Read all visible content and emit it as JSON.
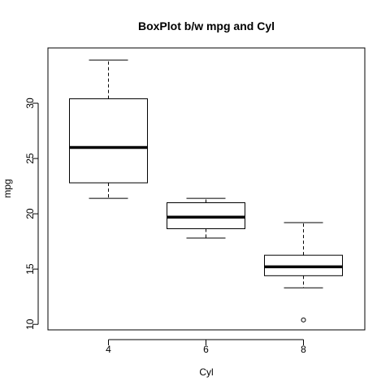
{
  "chart_data": {
    "type": "boxplot",
    "title": "BoxPlot b/w mpg and Cyl",
    "xlabel": "Cyl",
    "ylabel": "mpg",
    "categories": [
      "4",
      "6",
      "8"
    ],
    "x_ticks": [
      "4",
      "6",
      "8"
    ],
    "y_ticks": [
      10,
      15,
      20,
      25,
      30
    ],
    "ylim": [
      9.5,
      35.0
    ],
    "grid": false,
    "boxes": [
      {
        "category": "4",
        "whisker_low": 21.4,
        "q1": 22.8,
        "median": 26.0,
        "q3": 30.4,
        "whisker_high": 33.9,
        "outliers": []
      },
      {
        "category": "6",
        "whisker_low": 17.8,
        "q1": 18.65,
        "median": 19.7,
        "q3": 21.0,
        "whisker_high": 21.4,
        "outliers": []
      },
      {
        "category": "8",
        "whisker_low": 13.3,
        "q1": 14.4,
        "median": 15.2,
        "q3": 16.25,
        "whisker_high": 19.2,
        "outliers": [
          10.4
        ]
      }
    ]
  }
}
